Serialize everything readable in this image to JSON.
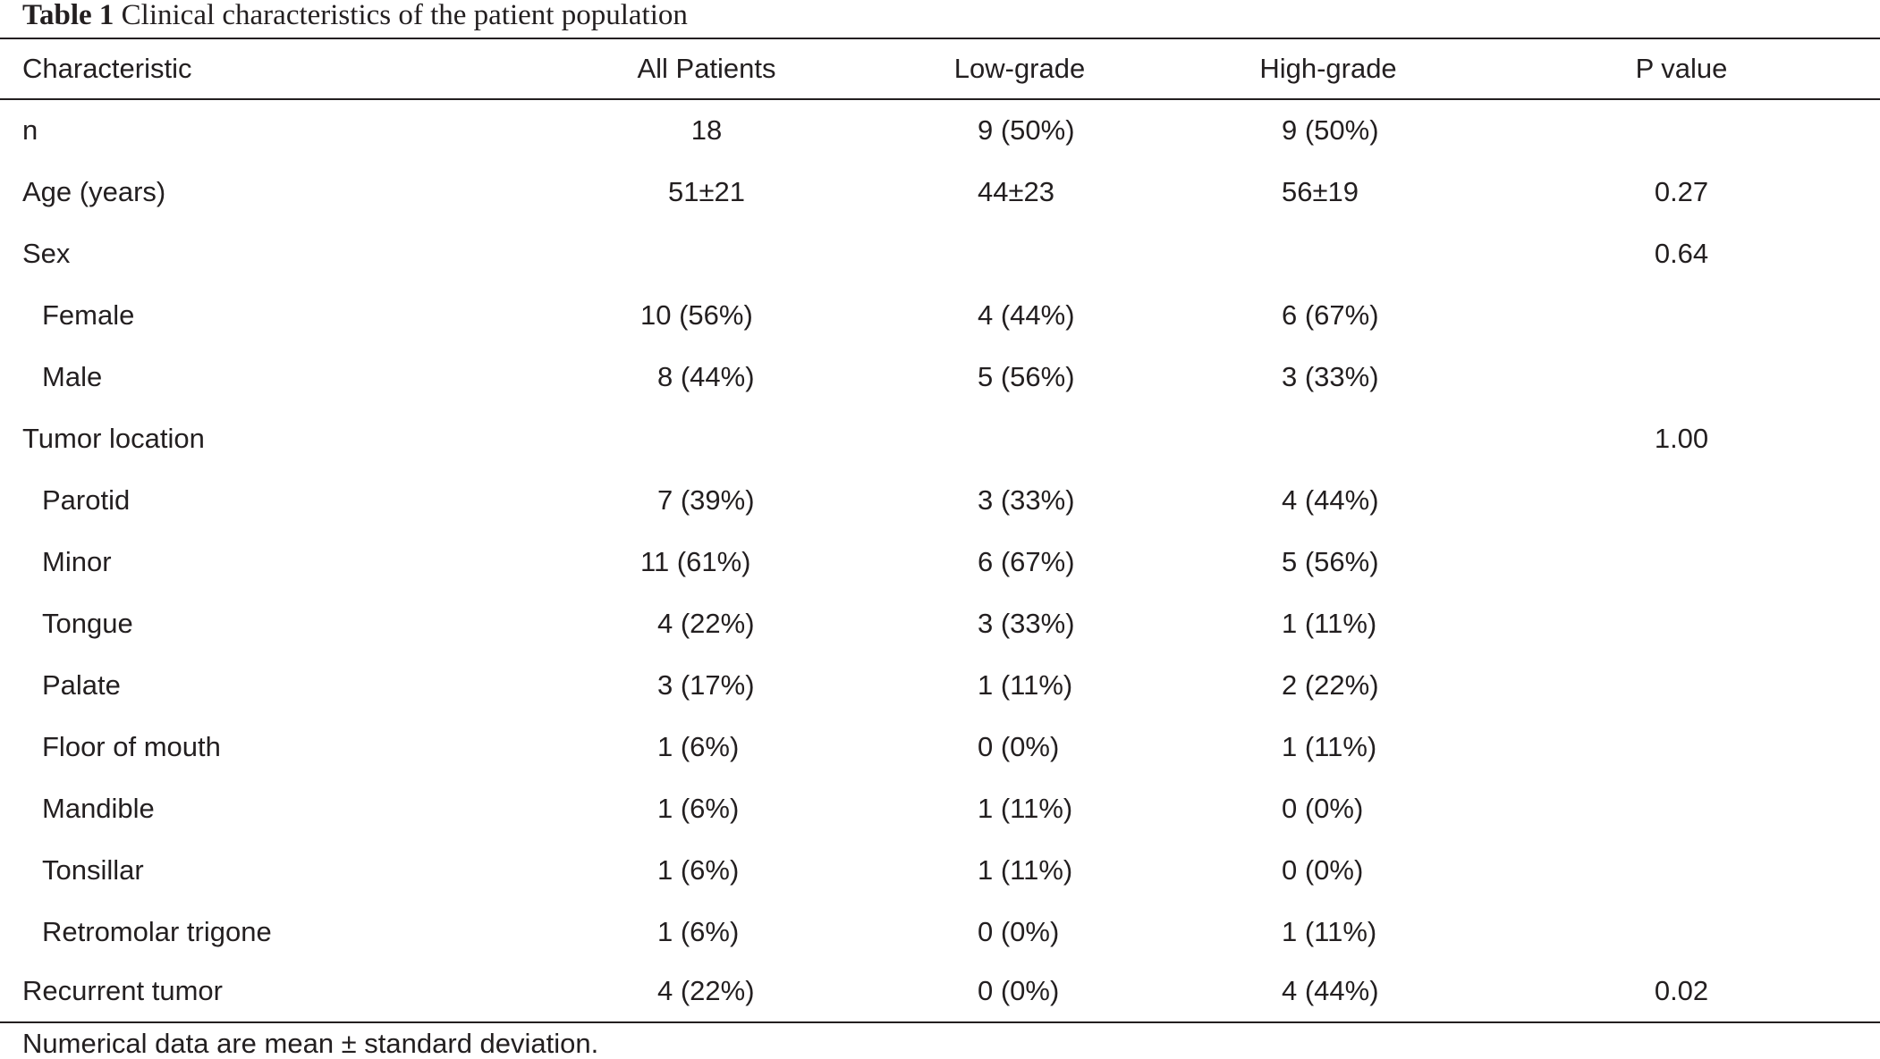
{
  "caption": {
    "label": "Table 1",
    "text": "Clinical characteristics of the patient population"
  },
  "table": {
    "columns": [
      "Characteristic",
      "All Patients",
      "Low-grade",
      "High-grade",
      "P value"
    ],
    "rows": [
      {
        "characteristic": "n",
        "all": "18",
        "low": "9 (50%)",
        "high": "9 (50%)",
        "p": ""
      },
      {
        "characteristic": "Age (years)",
        "all": "51±21",
        "low": "44±23",
        "high": "56±19",
        "p": "0.27"
      },
      {
        "characteristic": "Sex",
        "all": "",
        "low": "",
        "high": "",
        "p": "0.64"
      },
      {
        "characteristic": "Female",
        "all": "10 (56%)",
        "low": "4 (44%)",
        "high": "6 (67%)",
        "p": ""
      },
      {
        "characteristic": "Male",
        "all": "8 (44%)",
        "low": "5 (56%)",
        "high": "3 (33%)",
        "p": ""
      },
      {
        "characteristic": "Tumor location",
        "all": "",
        "low": "",
        "high": "",
        "p": "1.00"
      },
      {
        "characteristic": "Parotid",
        "all": "7 (39%)",
        "low": "3 (33%)",
        "high": "4 (44%)",
        "p": ""
      },
      {
        "characteristic": "Minor",
        "all": "11 (61%)",
        "low": "6 (67%)",
        "high": "5 (56%)",
        "p": ""
      },
      {
        "characteristic": "Tongue",
        "all": "4 (22%)",
        "low": "3 (33%)",
        "high": "1 (11%)",
        "p": ""
      },
      {
        "characteristic": "Palate",
        "all": "3 (17%)",
        "low": "1 (11%)",
        "high": "2 (22%)",
        "p": ""
      },
      {
        "characteristic": "Floor of mouth",
        "all": "1 (6%)",
        "low": "0 (0%)",
        "high": "1 (11%)",
        "p": ""
      },
      {
        "characteristic": "Mandible",
        "all": "1 (6%)",
        "low": "1 (11%)",
        "high": "0 (0%)",
        "p": ""
      },
      {
        "characteristic": "Tonsillar",
        "all": "1 (6%)",
        "low": "1 (11%)",
        "high": "0 (0%)",
        "p": ""
      },
      {
        "characteristic": "Retromolar trigone",
        "all": "1 (6%)",
        "low": "0 (0%)",
        "high": "1 (11%)",
        "p": ""
      },
      {
        "characteristic": "Recurrent tumor",
        "all": "4 (22%)",
        "low": "0 (0%)",
        "high": "4 (44%)",
        "p": "0.02"
      }
    ]
  },
  "footnote": "Numerical data are mean ± standard deviation."
}
